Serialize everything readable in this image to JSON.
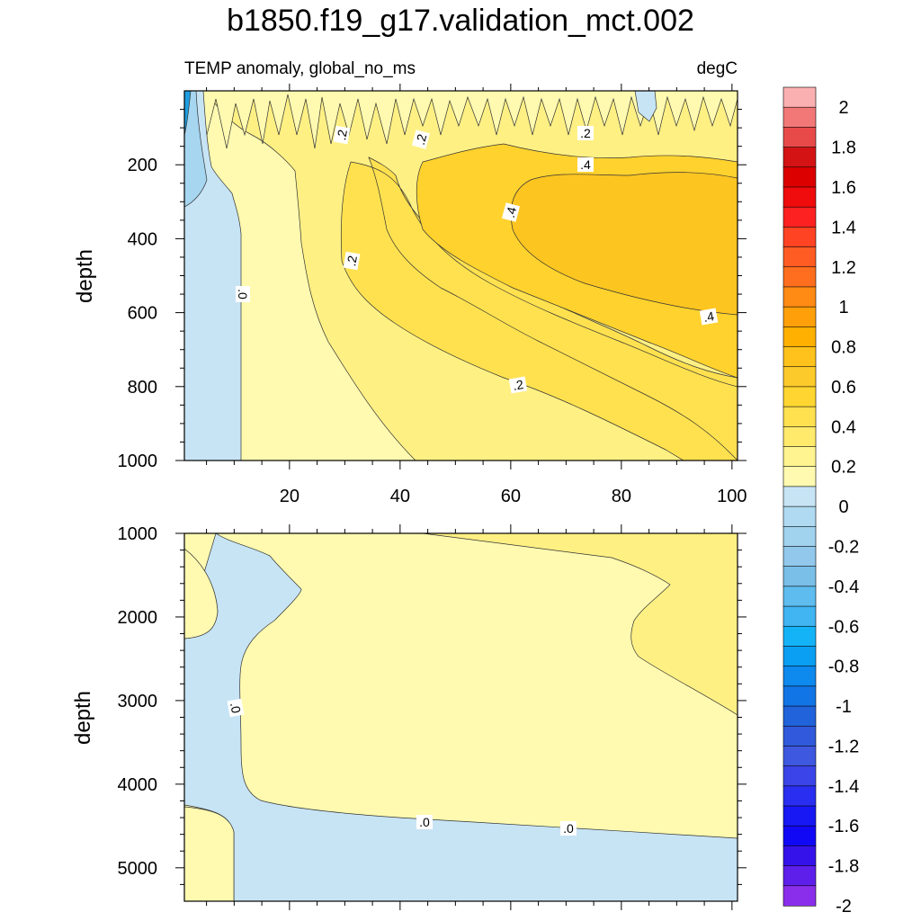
{
  "title": "b1850.f19_g17.validation_mct.002",
  "chart_data": [
    {
      "type": "heatmap",
      "panel": "upper",
      "left_label": "TEMP anomaly, global_no_ms",
      "right_label": "degC",
      "xlabel": "",
      "ylabel": "depth",
      "xlim": [
        1,
        101
      ],
      "ylim": [
        1000,
        0
      ],
      "x_ticks": [
        20,
        40,
        60,
        80,
        100
      ],
      "y_ticks": [
        200,
        400,
        600,
        800,
        1000
      ],
      "contour_labels": [
        ".2",
        ".2",
        ".2",
        ".4",
        ".4",
        ".0",
        ".2",
        ".2",
        ".4"
      ],
      "regions": [
        {
          "range": "-0.6 to -0.4",
          "fill": "#1E9EE0"
        },
        {
          "range": "-0.2 to 0",
          "fill": "#A6D6F0"
        },
        {
          "range": "-0.1 to 0",
          "fill": "#C7E4F5"
        },
        {
          "range": "0 to 0.1",
          "fill": "#FFFAB0"
        },
        {
          "range": "0.1 to 0.2",
          "fill": "#FFF084"
        },
        {
          "range": "0.2 to 0.3",
          "fill": "#FFE14F"
        },
        {
          "range": "0.3 to 0.4",
          "fill": "#FFD22E"
        },
        {
          "range": "0.4 to 0.5",
          "fill": "#FDC520"
        }
      ]
    },
    {
      "type": "heatmap",
      "panel": "lower",
      "xlabel": "",
      "ylabel": "depth",
      "xlim": [
        1,
        101
      ],
      "ylim": [
        5400,
        1000
      ],
      "y_ticks": [
        1000,
        2000,
        3000,
        4000,
        5000
      ],
      "contour_labels": [
        ".0",
        ".0",
        ".0"
      ],
      "regions": [
        {
          "range": "-0.1 to 0",
          "fill": "#C7E4F5"
        },
        {
          "range": "0 to 0.1",
          "fill": "#FFFAB0"
        },
        {
          "range": "0.1 to 0.2",
          "fill": "#FFF084"
        }
      ]
    }
  ],
  "colorbar": {
    "labels": [
      "2",
      "1.8",
      "1.6",
      "1.4",
      "1.2",
      "1",
      "0.8",
      "0.6",
      "0.4",
      "0.2",
      "0",
      "-0.2",
      "-0.4",
      "-0.6",
      "-0.8",
      "-1",
      "-1.2",
      "-1.4",
      "-1.6",
      "-1.8",
      "-2"
    ],
    "colors": [
      "#FAB0B0",
      "#F27878",
      "#E84A4A",
      "#D41414",
      "#DC0000",
      "#F00C0C",
      "#FE2121",
      "#FF4323",
      "#FF5C24",
      "#FF6E1E",
      "#FF8A14",
      "#FFA00A",
      "#FFB000",
      "#FFC21C",
      "#FDCA2C",
      "#FFD631",
      "#FFE14F",
      "#FFEA6C",
      "#FFF490",
      "#FFFAB0",
      "#C7E4F5",
      "#B0DAF2",
      "#A1D2EE",
      "#92C8EB",
      "#79BFE8",
      "#5EBCEF",
      "#41B4F2",
      "#14B3F7",
      "#0A9FF2",
      "#0E89EE",
      "#1275E6",
      "#2163DB",
      "#305ADB",
      "#3F58E0",
      "#3B44E8",
      "#2A2EF0",
      "#1818F4",
      "#1109F5",
      "#3612EA",
      "#5F1FEB",
      "#8B2EEB"
    ]
  }
}
